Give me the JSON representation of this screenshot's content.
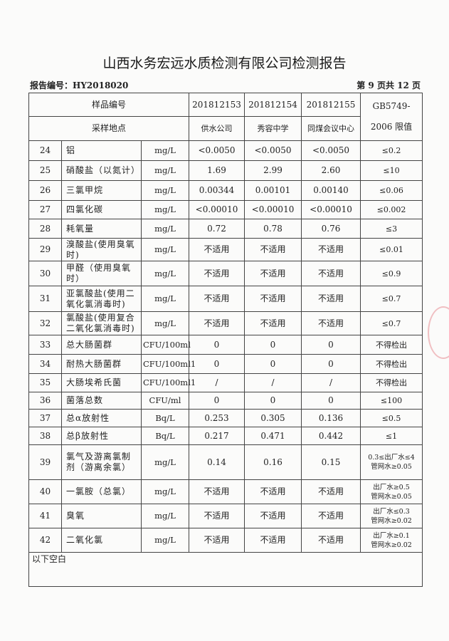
{
  "title": "山西水务宏远水质检测有限公司检测报告",
  "report_no": "报告编号：HY2018020",
  "page": "第 9 页共 12 页",
  "header": {
    "sample_no_label": "样品编号",
    "site_label": "采样地点",
    "samples": [
      "201812153",
      "201812154",
      "201812155"
    ],
    "sites": [
      "供水公司",
      "秀容中学",
      "同煤会议中心"
    ],
    "limit_label_1": "GB5749-",
    "limit_label_2": "2006 限值"
  },
  "rows": [
    {
      "no": "24",
      "name": "铝",
      "unit": "mg/L",
      "v": [
        "<0.0050",
        "<0.0050",
        "<0.0050"
      ],
      "limit": "≤0.2"
    },
    {
      "no": "25",
      "name": "硝酸盐（以氮计）",
      "unit": "mg/L",
      "v": [
        "1.69",
        "2.99",
        "2.60"
      ],
      "limit": "≤10"
    },
    {
      "no": "26",
      "name": "三氯甲烷",
      "unit": "mg/L",
      "v": [
        "0.00344",
        "0.00101",
        "0.00140"
      ],
      "limit": "≤0.06"
    },
    {
      "no": "27",
      "name": "四氯化碳",
      "unit": "mg/L",
      "v": [
        "<0.00010",
        "<0.00010",
        "<0.00010"
      ],
      "limit": "≤0.002"
    },
    {
      "no": "28",
      "name": "耗氧量",
      "unit": "mg/L",
      "v": [
        "0.72",
        "0.78",
        "0.76"
      ],
      "limit": "≤3"
    },
    {
      "no": "29",
      "name": "溴酸盐(使用臭氧时)",
      "unit": "mg/L",
      "v": [
        "不适用",
        "不适用",
        "不适用"
      ],
      "limit": "≤0.01"
    },
    {
      "no": "30",
      "name": "甲醛（使用臭氧时）",
      "unit": "mg/L",
      "v": [
        "不适用",
        "不适用",
        "不适用"
      ],
      "limit": "≤0.9"
    },
    {
      "no": "31",
      "name": "亚氯酸盐(使用二氧化氯消毒时)",
      "unit": "mg/L",
      "v": [
        "不适用",
        "不适用",
        "不适用"
      ],
      "limit": "≤0.7"
    },
    {
      "no": "32",
      "name": "氯酸盐(使用复合二氧化氯消毒时)",
      "unit": "mg/L",
      "v": [
        "不适用",
        "不适用",
        "不适用"
      ],
      "limit": "≤0.7"
    },
    {
      "no": "33",
      "name": "总大肠菌群",
      "unit": "CFU/100ml",
      "v": [
        "0",
        "0",
        "0"
      ],
      "limit": "不得检出"
    },
    {
      "no": "34",
      "name": "耐热大肠菌群",
      "unit": "CFU/100ml1",
      "v": [
        "0",
        "0",
        "0"
      ],
      "limit": "不得检出"
    },
    {
      "no": "35",
      "name": "大肠埃希氏菌",
      "unit": "CFU/100ml1",
      "v": [
        "/",
        "/",
        "/"
      ],
      "limit": "不得检出"
    },
    {
      "no": "36",
      "name": "菌落总数",
      "unit": "CFU/ml",
      "v": [
        "0",
        "0",
        "0"
      ],
      "limit": "≤100"
    },
    {
      "no": "37",
      "name": "总α放射性",
      "unit": "Bq/L",
      "v": [
        "0.253",
        "0.305",
        "0.136"
      ],
      "limit": "≤0.5"
    },
    {
      "no": "38",
      "name": "总β放射性",
      "unit": "Bq/L",
      "v": [
        "0.217",
        "0.471",
        "0.442"
      ],
      "limit": "≤1"
    },
    {
      "no": "39",
      "name": "氯气及游离氯制剂（游离余氯）",
      "unit": "mg/L",
      "v": [
        "0.14",
        "0.16",
        "0.15"
      ],
      "limit": "0.3≤出厂水≤4 管网水≥0.05"
    },
    {
      "no": "40",
      "name": "一氯胺（总氯）",
      "unit": "mg/L",
      "v": [
        "不适用",
        "不适用",
        "不适用"
      ],
      "limit": "出厂水≥0.5 管网水≥0.05"
    },
    {
      "no": "41",
      "name": "臭氧",
      "unit": "mg/L",
      "v": [
        "不适用",
        "不适用",
        "不适用"
      ],
      "limit": "出厂水≤0.3 管网水≥0.02"
    },
    {
      "no": "42",
      "name": "二氧化氯",
      "unit": "mg/L",
      "v": [
        "不适用",
        "不适用",
        "不适用"
      ],
      "limit": "出厂水≥0.1 管网水≥0.02"
    }
  ],
  "footer_note": "以下空白"
}
